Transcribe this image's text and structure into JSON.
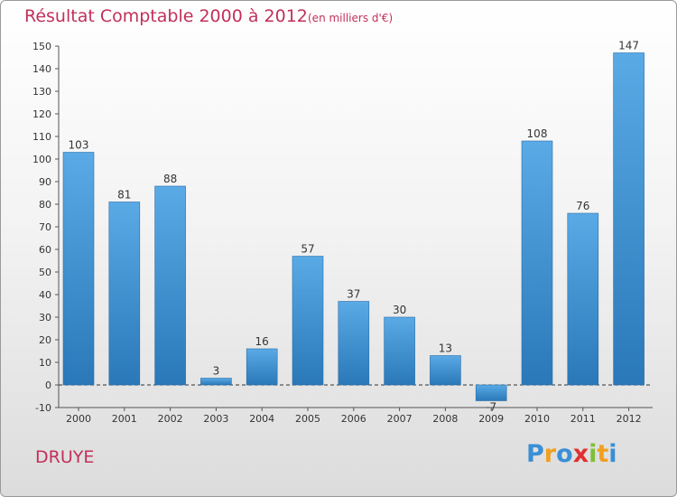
{
  "chart_data": {
    "type": "bar",
    "title": "Résultat Comptable 2000 à 2012",
    "subtitle": "(en milliers d'€)",
    "categories": [
      "2000",
      "2001",
      "2002",
      "2003",
      "2004",
      "2005",
      "2006",
      "2007",
      "2008",
      "2009",
      "2010",
      "2011",
      "2012"
    ],
    "values": [
      103,
      81,
      88,
      3,
      16,
      57,
      37,
      30,
      13,
      -7,
      108,
      76,
      147
    ],
    "data_labels": [
      "103",
      "81",
      "88",
      "3",
      "16",
      "57",
      "37",
      "30",
      "13",
      "-7",
      "108",
      "76",
      "147"
    ],
    "ylim": [
      -10,
      150
    ],
    "yticks": [
      "-10",
      "0",
      "10",
      "20",
      "30",
      "40",
      "50",
      "60",
      "70",
      "80",
      "90",
      "100",
      "110",
      "120",
      "130",
      "140",
      "150"
    ],
    "xlabel": "",
    "ylabel": "",
    "grid": false,
    "bar_color_light": "#5aaae6",
    "bar_color_dark": "#2a78b8",
    "accent_color": "#c2305a"
  },
  "place": "DRUYE",
  "logo": {
    "letters": [
      "P",
      "r",
      "o",
      "x",
      "i",
      "t",
      "i"
    ],
    "colors": [
      "#3a8fd6",
      "#f0a020",
      "#3a8fd6",
      "#e03030",
      "#7fbf3a",
      "#f0a020",
      "#3a8fd6"
    ]
  }
}
